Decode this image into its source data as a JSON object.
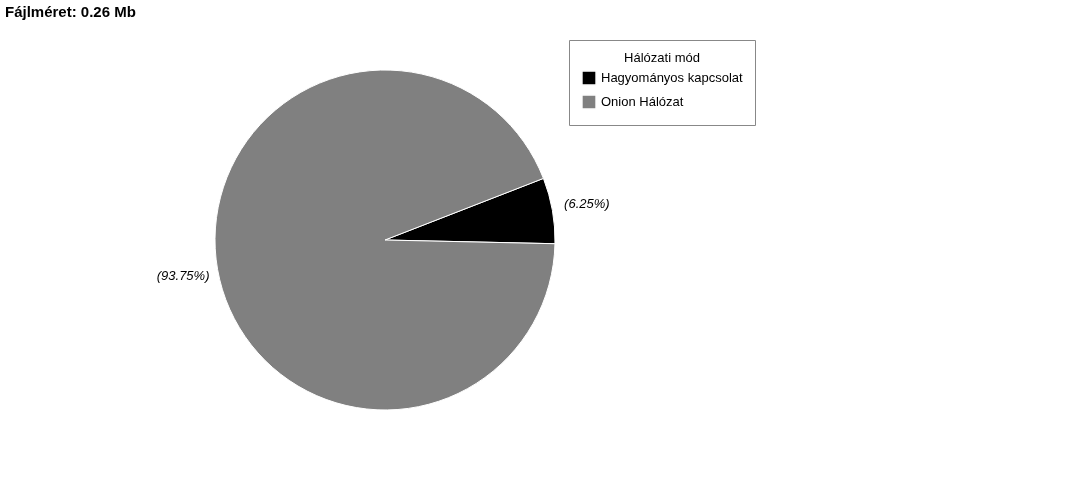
{
  "chart_data": {
    "type": "pie",
    "title": "Fájlméret: 0.26 Mb",
    "legend_title": "Hálózati mód",
    "categories": [
      "Hagyományos kapcsolat",
      "Onion Hálózat"
    ],
    "values": [
      6.25,
      93.75
    ],
    "colors": [
      "#000000",
      "#808080"
    ],
    "value_labels": [
      "(6.25%)",
      "(93.75%)"
    ],
    "legend": "top right"
  }
}
